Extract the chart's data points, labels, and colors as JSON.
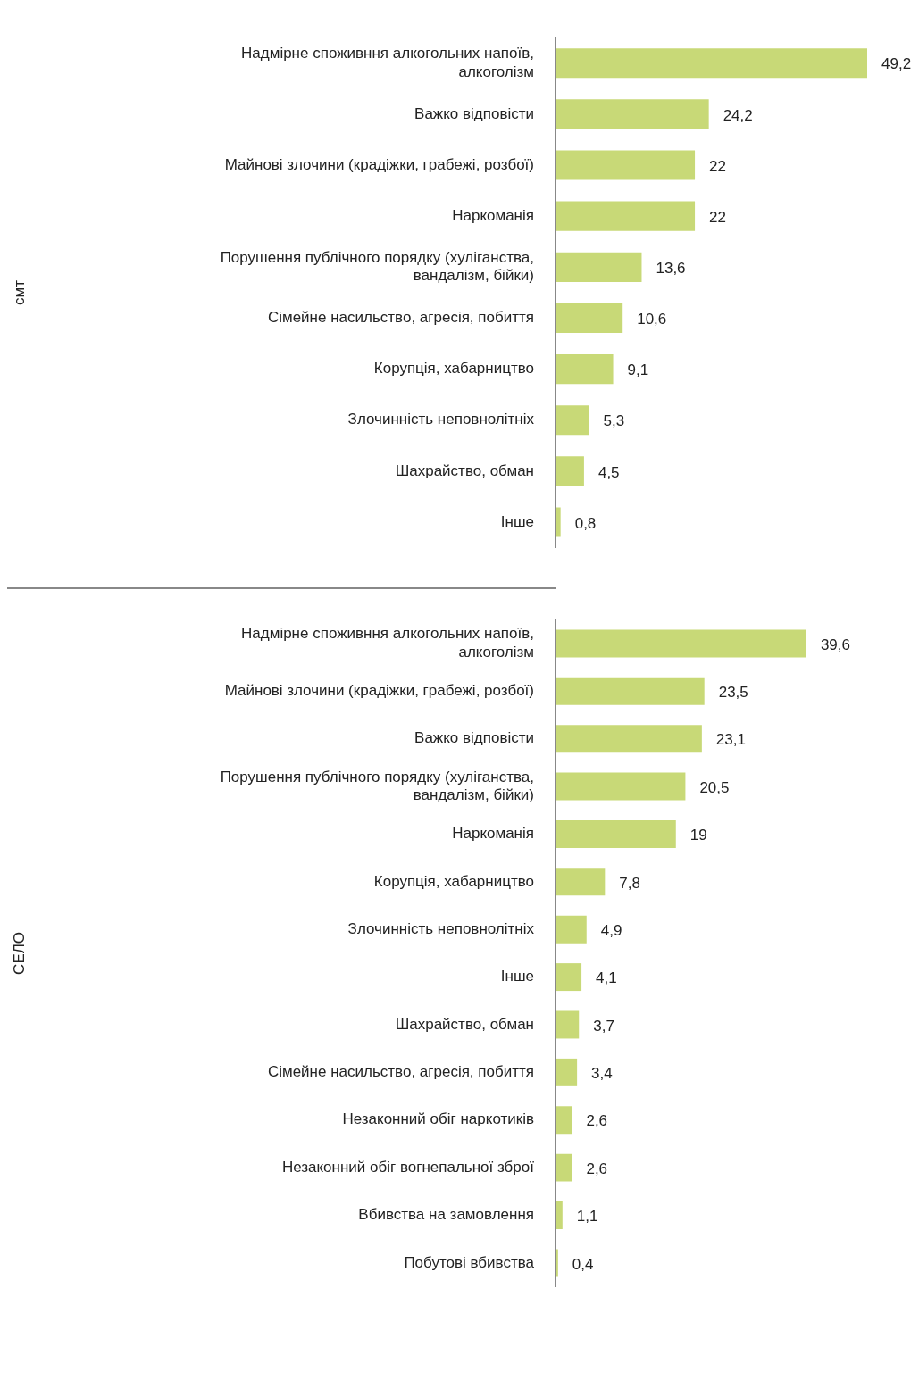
{
  "chart_data": [
    {
      "type": "bar",
      "orientation": "horizontal",
      "ylabel": "смт",
      "color": "#c8d977",
      "grid": false,
      "legend": false,
      "tick_labels": "y",
      "categories": [
        "Надмірне споживння алкогольних напоїв, алкоголізм",
        "Важко відповісти",
        "Майнові злочини (крадіжки, грабежі, розбої)",
        "Наркоманія",
        "Порушення публічного порядку (хуліганства, вандалізм, бійки)",
        "Сімейне насильство, агресія, побиття",
        "Корупція, хабарництво",
        "Злочинність неповнолітніх",
        "Шахрайство, обман",
        "Інше"
      ],
      "values": [
        49.2,
        24.2,
        22,
        22,
        13.6,
        10.6,
        9.1,
        5.3,
        4.5,
        0.8
      ],
      "value_labels": [
        "49,2",
        "24,2",
        "22",
        "22",
        "13,6",
        "10,6",
        "9,1",
        "5,3",
        "4,5",
        "0,8"
      ]
    },
    {
      "type": "bar",
      "orientation": "horizontal",
      "ylabel": "СЕЛО",
      "color": "#c8d977",
      "grid": false,
      "legend": false,
      "tick_labels": "y",
      "categories": [
        "Надмірне споживння алкогольних напоїв, алкоголізм",
        "Майнові злочини (крадіжки, грабежі, розбої)",
        "Важко відповісти",
        "Порушення публічного порядку (хуліганства, вандалізм, бійки)",
        "Наркоманія",
        "Корупція, хабарництво",
        "Злочинність неповнолітніх",
        "Інше",
        "Шахрайство, обман",
        "Сімейне насильство, агресія, побиття",
        "Незаконний обіг наркотиків",
        "Незаконний обіг вогнепальної зброї",
        "Вбивства на замовлення",
        "Побутові вбивства"
      ],
      "values": [
        39.6,
        23.5,
        23.1,
        20.5,
        19,
        7.8,
        4.9,
        4.1,
        3.7,
        3.4,
        2.6,
        2.6,
        1.1,
        0.4
      ],
      "value_labels": [
        "39,6",
        "23,5",
        "23,1",
        "20,5",
        "19",
        "7,8",
        "4,9",
        "4,1",
        "3,7",
        "3,4",
        "2,6",
        "2,6",
        "1,1",
        "0,4"
      ]
    }
  ]
}
